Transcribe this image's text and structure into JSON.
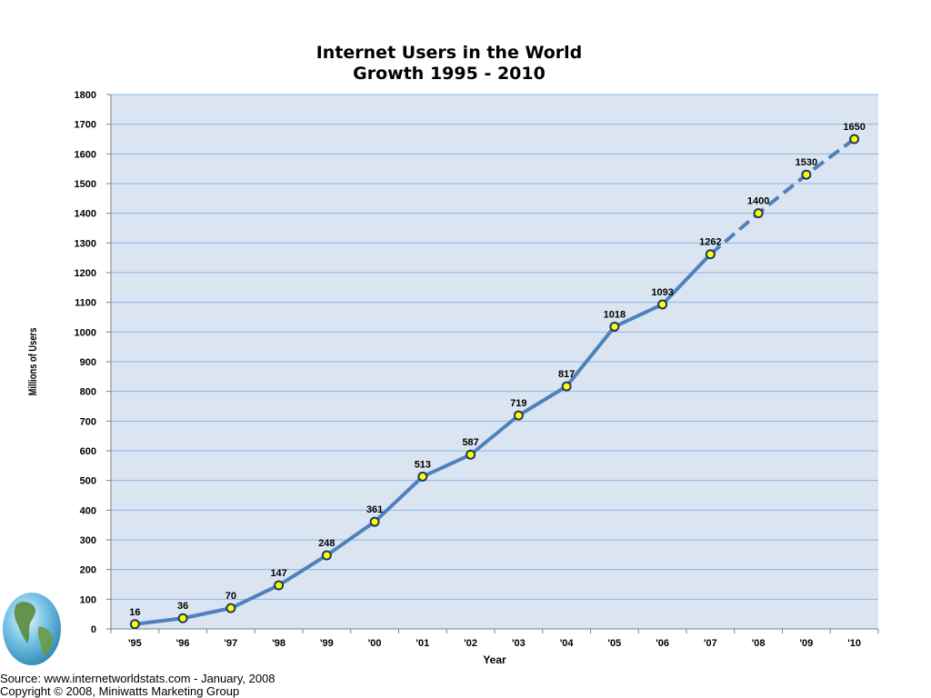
{
  "chart_data": {
    "type": "line",
    "title": "Internet Users in the World",
    "subtitle": "Growth 1995 - 2010",
    "xlabel": "Year",
    "ylabel": "Millions of Users",
    "ylim": [
      0,
      1800
    ],
    "ytick_step": 100,
    "grid": true,
    "categories": [
      "'95",
      "'96",
      "'97",
      "'98",
      "'99",
      "'00",
      "'01",
      "'02",
      "'03",
      "'04",
      "'05",
      "'06",
      "'07",
      "'08",
      "'09",
      "'10"
    ],
    "series": [
      {
        "values": [
          16,
          36,
          70,
          147,
          248,
          361,
          513,
          587,
          719,
          817,
          1018,
          1093,
          1262,
          1400,
          1530,
          1650
        ],
        "projected_from_index": 12
      }
    ],
    "colors": {
      "plot_background": "#dbe5f1",
      "gridline": "#8eb4e3",
      "line": "#4f81bd",
      "marker_fill": "#ffff00",
      "marker_stroke": "#1f3864"
    }
  },
  "footer": {
    "source": "Source: www.internetworldstats.com - January, 2008",
    "copyright": "Copyright © 2008, Miniwatts Marketing Group"
  },
  "logo": {
    "icon": "globe-icon"
  }
}
